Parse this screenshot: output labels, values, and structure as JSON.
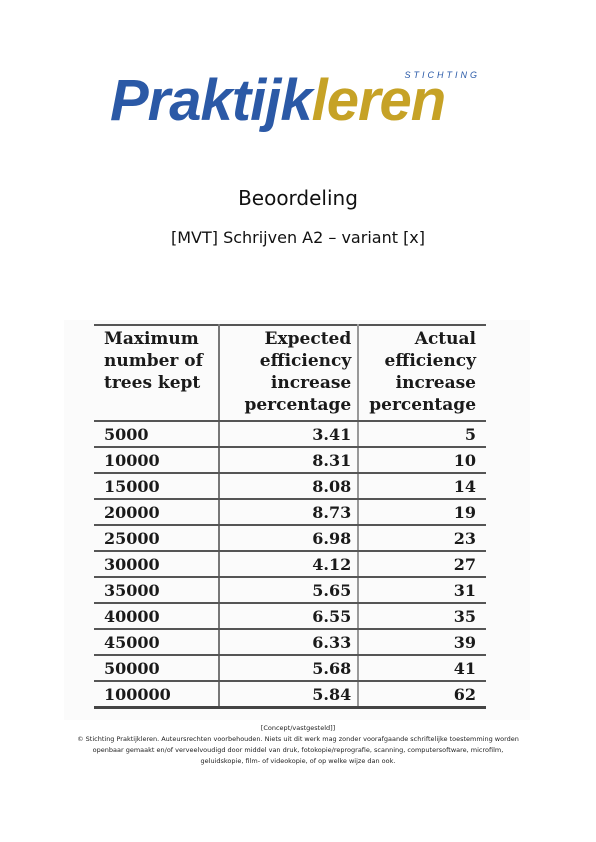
{
  "logo": {
    "stichting": "STICHTING",
    "part1": "Praktijk",
    "part2": "leren",
    "colors": {
      "blue": "#2b59a6",
      "gold": "#c6a226"
    }
  },
  "title": "Beoordeling",
  "subtitle": "[MVT] Schrijven A2 – variant [x]",
  "table": {
    "headers": [
      "Maximum number of trees kept",
      "Expected efficiency increase percentage",
      "Actual efficiency increase percentage"
    ],
    "rows": [
      [
        "5000",
        "3.41",
        "5"
      ],
      [
        "10000",
        "8.31",
        "10"
      ],
      [
        "15000",
        "8.08",
        "14"
      ],
      [
        "20000",
        "8.73",
        "19"
      ],
      [
        "25000",
        "6.98",
        "23"
      ],
      [
        "30000",
        "4.12",
        "27"
      ],
      [
        "35000",
        "5.65",
        "31"
      ],
      [
        "40000",
        "6.55",
        "35"
      ],
      [
        "45000",
        "6.33",
        "39"
      ],
      [
        "50000",
        "5.68",
        "41"
      ],
      [
        "100000",
        "5.84",
        "62"
      ]
    ]
  },
  "footer": {
    "status": "[Concept/vastgesteld]]",
    "line1": "© Stichting Praktijkleren. Auteursrechten voorbehouden. Niets uit dit werk mag zonder voorafgaande schriftelijke toestemming worden",
    "line2": "openbaar gemaakt en/of verveelvoudigd door middel van druk, fotokopie/reprografie, scanning, computersoftware, microfilm,",
    "line3": "geluidskopie, film- of videokopie, of op welke wijze dan ook."
  }
}
